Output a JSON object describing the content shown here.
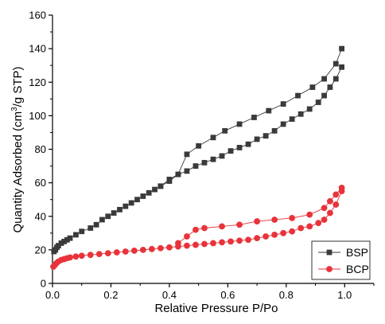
{
  "chart_data": {
    "type": "line",
    "xlabel": "Relative Pressure P/Po",
    "ylabel_main": "Quantity Adsorbed (cm",
    "ylabel_sup": "3",
    "ylabel_tail": "/g STP)",
    "xlim": [
      0.0,
      1.1
    ],
    "ylim": [
      0,
      160
    ],
    "xticks": [
      "0.0",
      "0.2",
      "0.4",
      "0.6",
      "0.8",
      "1.0"
    ],
    "xtick_values": [
      0.0,
      0.2,
      0.4,
      0.6,
      0.8,
      1.0
    ],
    "yticks": [
      "0",
      "20",
      "40",
      "60",
      "80",
      "100",
      "120",
      "140",
      "160"
    ],
    "ytick_values": [
      0,
      20,
      40,
      60,
      80,
      100,
      120,
      140,
      160
    ],
    "legend_position": "bottom-right",
    "grid": false,
    "series": [
      {
        "name": "BSP",
        "color": "#3a3a3a",
        "marker": "square",
        "adsorption": {
          "x": [
            0.005,
            0.01,
            0.015,
            0.02,
            0.03,
            0.04,
            0.05,
            0.06,
            0.08,
            0.1,
            0.13,
            0.15,
            0.17,
            0.19,
            0.21,
            0.23,
            0.25,
            0.27,
            0.29,
            0.31,
            0.33,
            0.35,
            0.37,
            0.4,
            0.43,
            0.46,
            0.49,
            0.52,
            0.55,
            0.58,
            0.61,
            0.64,
            0.67,
            0.7,
            0.73,
            0.76,
            0.79,
            0.82,
            0.85,
            0.88,
            0.91,
            0.93,
            0.95,
            0.97,
            0.99
          ],
          "y": [
            19,
            20,
            21.5,
            22.5,
            24,
            25,
            26,
            27,
            29,
            31,
            33,
            35,
            38,
            40,
            42,
            44,
            46,
            48,
            50,
            52,
            54,
            56,
            58,
            62,
            65,
            67,
            70,
            72,
            74,
            76,
            79,
            81,
            83,
            86,
            88,
            91,
            95,
            98,
            101,
            104,
            108,
            112,
            117,
            122,
            129
          ]
        },
        "desorption": {
          "x": [
            0.99,
            0.97,
            0.93,
            0.89,
            0.84,
            0.79,
            0.74,
            0.69,
            0.64,
            0.59,
            0.55,
            0.5,
            0.46,
            0.43,
            0.4,
            0.37
          ],
          "y": [
            140,
            131,
            122,
            117,
            112,
            107,
            103,
            99,
            95,
            91,
            87,
            82,
            77,
            65,
            61,
            58
          ]
        }
      },
      {
        "name": "BCP",
        "color": "#e8333b",
        "marker": "circle",
        "adsorption": {
          "x": [
            0.003,
            0.008,
            0.013,
            0.02,
            0.03,
            0.04,
            0.05,
            0.06,
            0.08,
            0.1,
            0.13,
            0.16,
            0.19,
            0.22,
            0.25,
            0.28,
            0.31,
            0.34,
            0.37,
            0.4,
            0.43,
            0.46,
            0.49,
            0.52,
            0.55,
            0.58,
            0.61,
            0.64,
            0.67,
            0.7,
            0.73,
            0.76,
            0.79,
            0.82,
            0.85,
            0.88,
            0.91,
            0.93,
            0.95,
            0.97,
            0.99
          ],
          "y": [
            10,
            11,
            12,
            13,
            14,
            14.5,
            15,
            15.5,
            16,
            16.5,
            17,
            17.5,
            18,
            18.5,
            19,
            19.5,
            20,
            20.5,
            21,
            21.5,
            22,
            22.5,
            23,
            23.5,
            24,
            24.5,
            25,
            25.5,
            26,
            27,
            28,
            29,
            30,
            31,
            33,
            34,
            36,
            38,
            42,
            47,
            55
          ]
        },
        "desorption": {
          "x": [
            0.99,
            0.97,
            0.95,
            0.93,
            0.88,
            0.82,
            0.76,
            0.7,
            0.64,
            0.58,
            0.52,
            0.49,
            0.46,
            0.43
          ],
          "y": [
            57,
            53,
            49,
            45,
            41,
            39,
            38,
            37,
            35,
            34,
            33,
            32,
            28,
            24
          ]
        }
      }
    ]
  }
}
